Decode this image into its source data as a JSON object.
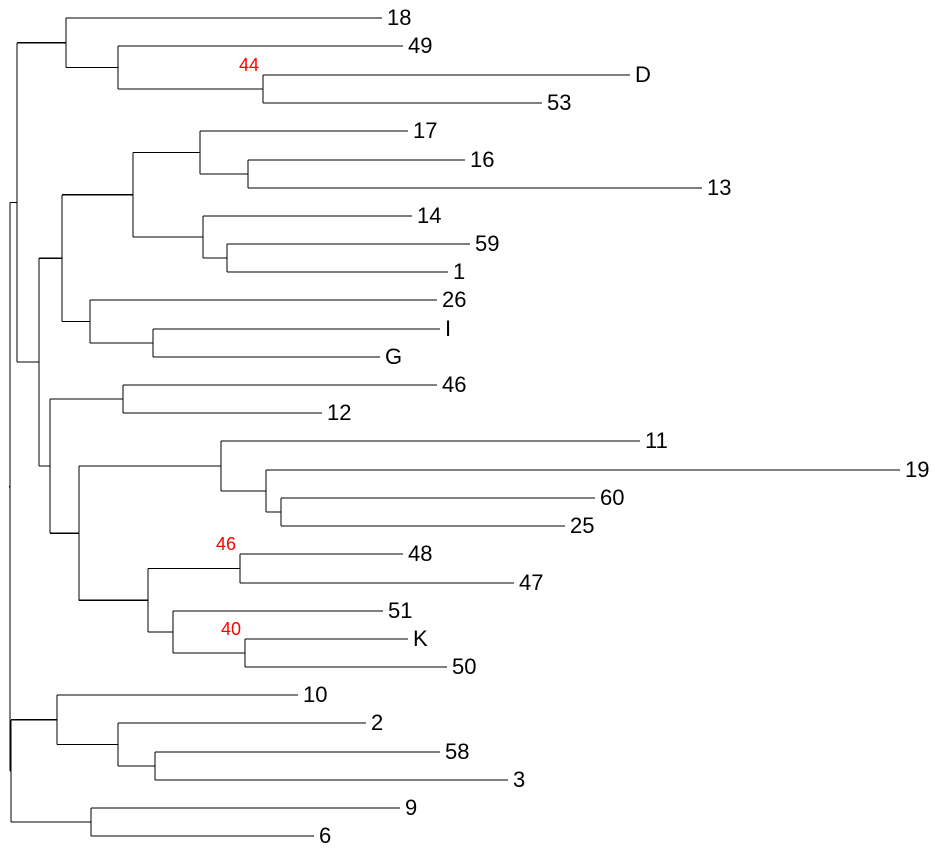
{
  "tree": {
    "colors": {
      "branch": "#000000",
      "tip_label": "#000000",
      "support_label": "#ff0000"
    },
    "tips": [
      "18",
      "49",
      "D",
      "53",
      "17",
      "16",
      "13",
      "14",
      "59",
      "1",
      "26",
      "I",
      "G",
      "46",
      "12",
      "11",
      "19",
      "60",
      "25",
      "48",
      "47",
      "51",
      "K",
      "50",
      "10",
      "2",
      "58",
      "3",
      "9",
      "6"
    ],
    "support_values": [
      "44",
      "46",
      "40"
    ]
  }
}
